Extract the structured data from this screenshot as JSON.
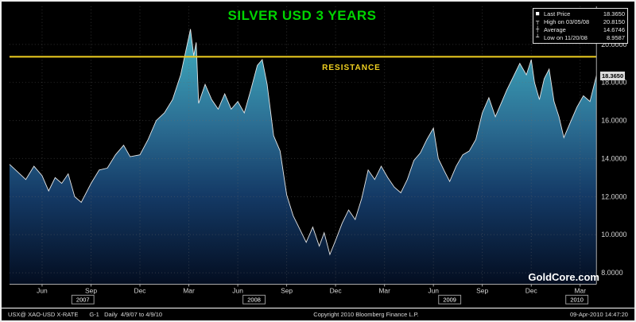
{
  "header": {
    "title": "SILVER USD 3 YEARS"
  },
  "legend": {
    "items": [
      {
        "marker": "■",
        "label": "Last Price",
        "value": "18.3650"
      },
      {
        "marker": "┬",
        "label": "High on 03/05/08",
        "value": "20.8150"
      },
      {
        "marker": "┼",
        "label": "Average",
        "value": "14.6746"
      },
      {
        "marker": "┴",
        "label": "Low on 11/20/08",
        "value": "8.9587"
      }
    ]
  },
  "annotations": {
    "resistance_label": "RESISTANCE",
    "watermark": "GoldCore.com",
    "last_price_tag": "18.3650"
  },
  "footer": {
    "ticker_info": "USX@ XAO-USD X-RATE",
    "range_info": "G-1   Daily  4/9/07 to 4/9/10",
    "copyright": "Copyright 2010 Bloomberg Finance L.P.",
    "timestamp": "09-Apr-2010 14:47:20"
  },
  "colors": {
    "title_green": "#00d400",
    "resistance_yellow": "#f0d020",
    "grid": "#6a6a6a",
    "axis_text": "#d6d6d6",
    "axis_line": "#aaaaaa",
    "line": "#e6e6e6",
    "area_top": "#6ecbdc",
    "area_mid1": "#3a9db4",
    "area_mid2": "#2c6f94",
    "area_mid3": "#143a66",
    "area_bottom": "#030d20"
  },
  "chart_data": {
    "type": "area",
    "title": "SILVER USD 3 YEARS",
    "x_unit": "months since Apr 2007",
    "x_total_months": 36,
    "ylim": [
      7.4,
      22.0
    ],
    "yticks": [
      {
        "v": 8,
        "label": "8.0000"
      },
      {
        "v": 10,
        "label": "10.0000"
      },
      {
        "v": 12,
        "label": "12.0000"
      },
      {
        "v": 14,
        "label": "14.0000"
      },
      {
        "v": 16,
        "label": "16.0000"
      },
      {
        "v": 18,
        "label": "18.0000"
      },
      {
        "v": 20,
        "label": "20.0000"
      }
    ],
    "xticks": [
      {
        "m": 2,
        "label": "Jun"
      },
      {
        "m": 5,
        "label": "Sep"
      },
      {
        "m": 8,
        "label": "Dec"
      },
      {
        "m": 11,
        "label": "Mar"
      },
      {
        "m": 14,
        "label": "Jun"
      },
      {
        "m": 17,
        "label": "Sep"
      },
      {
        "m": 20,
        "label": "Dec"
      },
      {
        "m": 23,
        "label": "Mar"
      },
      {
        "m": 26,
        "label": "Jun"
      },
      {
        "m": 29,
        "label": "Sep"
      },
      {
        "m": 32,
        "label": "Dec"
      },
      {
        "m": 35,
        "label": "Mar"
      }
    ],
    "year_labels": [
      {
        "m": 4.5,
        "label": "2007"
      },
      {
        "m": 15,
        "label": "2008"
      },
      {
        "m": 27,
        "label": "2009"
      },
      {
        "m": 34.8,
        "label": "2010"
      }
    ],
    "resistance_level": 19.35,
    "last_price": 18.365,
    "high": {
      "date": "03/05/08",
      "value": 20.815
    },
    "average": 14.6746,
    "low": {
      "date": "11/20/08",
      "value": 8.9587
    },
    "series": [
      {
        "name": "Silver USD",
        "x": [
          0,
          0.5,
          1,
          1.5,
          2,
          2.4,
          2.8,
          3.2,
          3.6,
          4,
          4.4,
          5,
          5.5,
          6,
          6.5,
          7,
          7.4,
          8,
          8.5,
          9,
          9.5,
          10,
          10.5,
          10.8,
          11.1,
          11.3,
          11.45,
          11.6,
          12,
          12.4,
          12.8,
          13.2,
          13.6,
          14,
          14.4,
          14.8,
          15.2,
          15.5,
          15.8,
          16.2,
          16.6,
          17,
          17.4,
          17.8,
          18.2,
          18.6,
          19,
          19.3,
          19.65,
          20,
          20.4,
          20.8,
          21.2,
          21.6,
          22,
          22.4,
          22.8,
          23.2,
          23.6,
          24,
          24.4,
          24.8,
          25.2,
          25.6,
          26,
          26.3,
          26.7,
          27,
          27.4,
          27.8,
          28.2,
          28.6,
          29,
          29.4,
          29.8,
          30.2,
          30.5,
          30.9,
          31.3,
          31.7,
          32,
          32.2,
          32.5,
          32.8,
          33.1,
          33.4,
          33.7,
          34,
          34.4,
          34.8,
          35.2,
          35.6,
          36
        ],
        "values": [
          13.7,
          13.3,
          12.9,
          13.6,
          13.1,
          12.3,
          13.0,
          12.7,
          13.2,
          12.0,
          11.7,
          12.7,
          13.4,
          13.5,
          14.2,
          14.7,
          14.1,
          14.2,
          15.0,
          16.0,
          16.4,
          17.1,
          18.4,
          19.6,
          20.8,
          19.4,
          20.1,
          16.9,
          17.9,
          17.1,
          16.6,
          17.4,
          16.6,
          17.0,
          16.4,
          17.6,
          18.9,
          19.2,
          17.9,
          15.2,
          14.4,
          12.1,
          11.0,
          10.3,
          9.6,
          10.4,
          9.4,
          10.1,
          8.96,
          9.7,
          10.6,
          11.3,
          10.8,
          11.9,
          13.4,
          12.9,
          13.6,
          13.0,
          12.5,
          12.2,
          12.9,
          13.9,
          14.3,
          15.0,
          15.6,
          14.0,
          13.3,
          12.8,
          13.6,
          14.2,
          14.4,
          15.0,
          16.4,
          17.2,
          16.2,
          17.0,
          17.6,
          18.3,
          19.0,
          18.4,
          19.2,
          18.0,
          17.1,
          18.2,
          18.7,
          17.0,
          16.2,
          15.1,
          15.9,
          16.7,
          17.3,
          17.0,
          18.365
        ]
      }
    ]
  }
}
